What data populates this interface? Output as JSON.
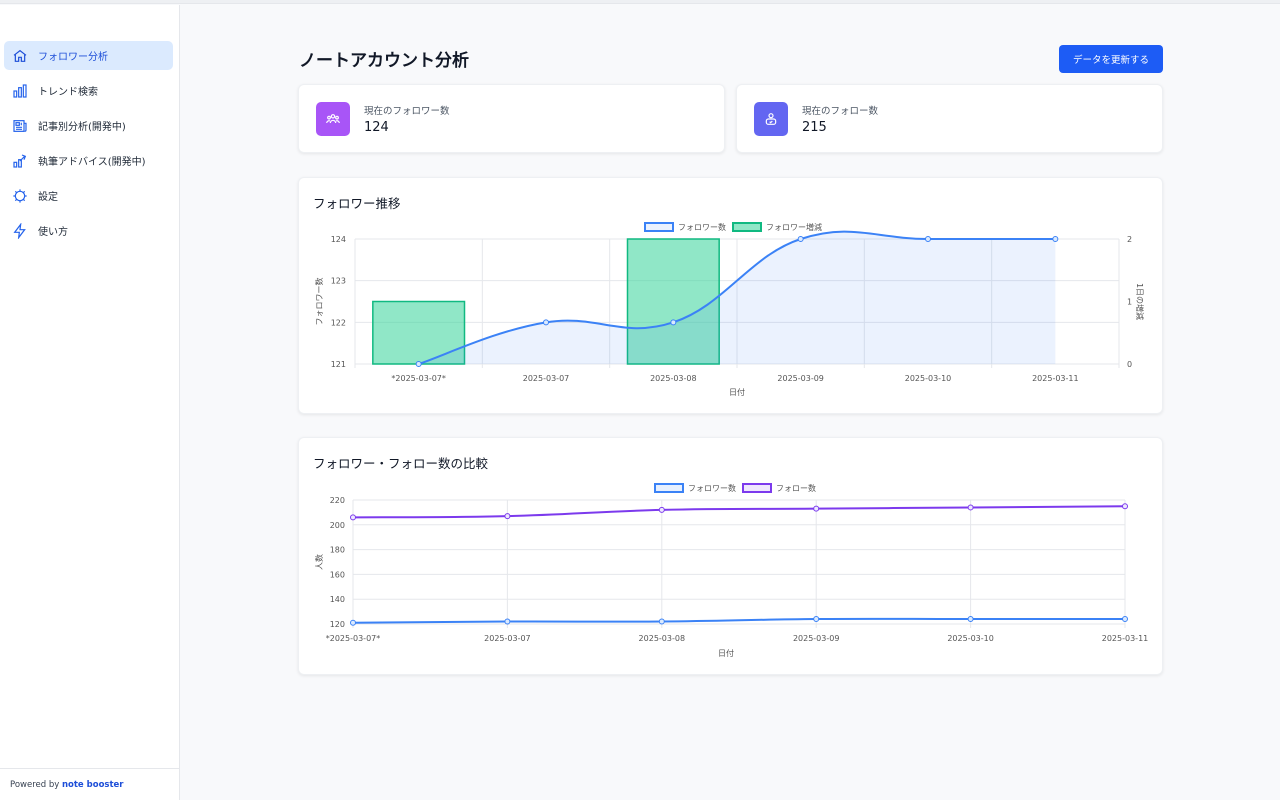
{
  "sidebar": {
    "items": [
      {
        "label": "フォロワー分析",
        "icon": "home-icon",
        "active": true
      },
      {
        "label": "トレンド検索",
        "icon": "bar-chart-icon"
      },
      {
        "label": "記事別分析(開発中)",
        "icon": "newspaper-icon"
      },
      {
        "label": "執筆アドバイス(開発中)",
        "icon": "chart-up-icon"
      },
      {
        "label": "設定",
        "icon": "gear-icon"
      },
      {
        "label": "使い方",
        "icon": "lightning-icon"
      }
    ],
    "footer_prefix": "Powered by ",
    "footer_brand": "note booster"
  },
  "header": {
    "title": "ノートアカウント分析",
    "refresh_label": "データを更新する"
  },
  "stats": {
    "followers": {
      "label": "現在のフォロワー数",
      "value": "124",
      "icon": "users-group-icon",
      "color": "#a855f7"
    },
    "following": {
      "label": "現在のフォロー数",
      "value": "215",
      "icon": "user-follow-icon",
      "color": "#6366f1"
    }
  },
  "chart_data": [
    {
      "type": "bar+line",
      "title": "フォロワー推移",
      "categories": [
        "*2025-03-07*",
        "2025-03-07",
        "2025-03-08",
        "2025-03-09",
        "2025-03-10",
        "2025-03-11"
      ],
      "series": [
        {
          "name": "フォロワー数",
          "type": "line",
          "axis": "left",
          "color": "#3b82f6",
          "values": [
            121,
            122,
            122,
            124,
            124,
            124
          ]
        },
        {
          "name": "フォロワー増減",
          "type": "bar",
          "axis": "right",
          "color": "#34d399",
          "values": [
            1,
            0,
            2,
            0,
            0,
            0
          ]
        }
      ],
      "xlabel": "日付",
      "ylabel": "フォロワー数",
      "y2label": "1日の増減",
      "ylim": [
        121,
        124
      ],
      "y2lim": [
        0,
        2
      ],
      "yticks": [
        121,
        122,
        123,
        124
      ],
      "y2ticks": [
        0,
        1,
        2
      ],
      "legend": "top-center",
      "grid": true
    },
    {
      "type": "line",
      "title": "フォロワー・フォロー数の比較",
      "categories": [
        "*2025-03-07*",
        "2025-03-07",
        "2025-03-08",
        "2025-03-09",
        "2025-03-10",
        "2025-03-11"
      ],
      "series": [
        {
          "name": "フォロワー数",
          "color": "#3b82f6",
          "values": [
            121,
            122,
            122,
            124,
            124,
            124
          ]
        },
        {
          "name": "フォロー数",
          "color": "#7c3aed",
          "values": [
            206,
            207,
            212,
            213,
            214,
            215
          ]
        }
      ],
      "xlabel": "日付",
      "ylabel": "人数",
      "ylim": [
        120,
        220
      ],
      "yticks": [
        120,
        140,
        160,
        180,
        200,
        220
      ],
      "legend": "top-center",
      "grid": true
    }
  ]
}
